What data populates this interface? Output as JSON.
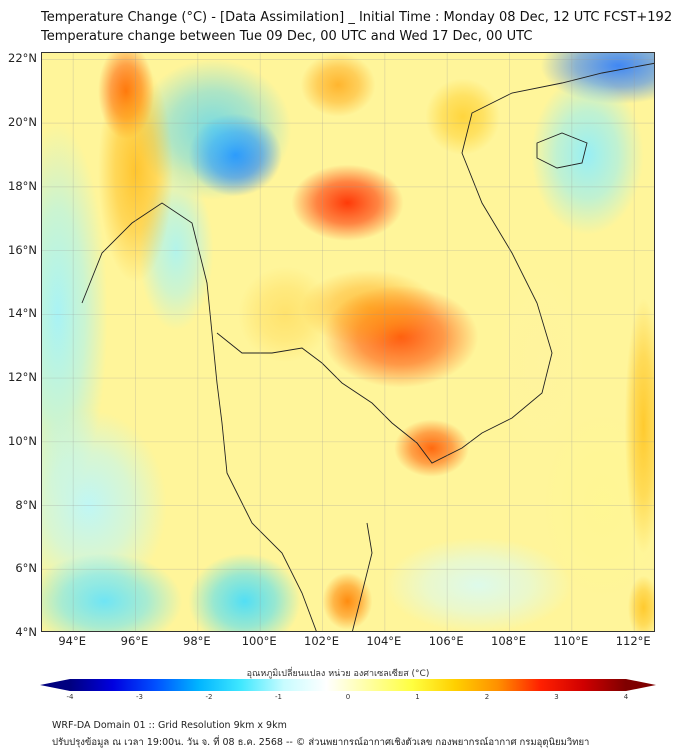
{
  "title": {
    "line1": "Temperature Change (°C) - [Data Assimilation] _ Initial Time : Monday 08 Dec, 12 UTC FCST+192",
    "line2": "Temperature change between Tue 09 Dec, 00 UTC and Wed 17 Dec, 00 UTC"
  },
  "map": {
    "x_ticks": [
      "94°E",
      "96°E",
      "98°E",
      "100°E",
      "102°E",
      "104°E",
      "106°E",
      "108°E",
      "110°E",
      "112°E"
    ],
    "x_tick_values": [
      94,
      96,
      98,
      100,
      102,
      104,
      106,
      108,
      110,
      112
    ],
    "y_ticks": [
      "22°N",
      "20°N",
      "18°N",
      "16°N",
      "14°N",
      "12°N",
      "10°N",
      "8°N",
      "6°N",
      "4°N"
    ],
    "y_tick_values": [
      22,
      20,
      18,
      16,
      14,
      12,
      10,
      8,
      6,
      4
    ],
    "lon_range": [
      93.0,
      112.7
    ],
    "lat_range": [
      4.0,
      22.2
    ]
  },
  "colorbar": {
    "label": "อุณหภูมิเปลี่ยนแปลง หน่วย องศาเซลเซียส (°C)",
    "ticks": [
      "-4",
      "-3",
      "-2",
      "-1",
      "0",
      "1",
      "2",
      "3",
      "4"
    ],
    "range": [
      -4,
      4
    ],
    "colors": [
      "#00007f",
      "#0000e0",
      "#0050ff",
      "#00b4ff",
      "#40e8ff",
      "#c8fcff",
      "#ffffff",
      "#ffffa0",
      "#ffff40",
      "#ffd000",
      "#ff9000",
      "#ff2000",
      "#d00000",
      "#7f0000"
    ]
  },
  "footer": {
    "line1": "WRF-DA Domain 01 :: Grid Resolution 9km x 9km",
    "line2": "ปรับปรุงข้อมูล ณ เวลา 19:00น. วัน จ. ที่ 08 ธ.ค. 2568 -- © ส่วนพยากรณ์อากาศเชิงตัวเลข กองพยากรณ์อากาศ กรมอุตุนิยมวิทยา"
  }
}
